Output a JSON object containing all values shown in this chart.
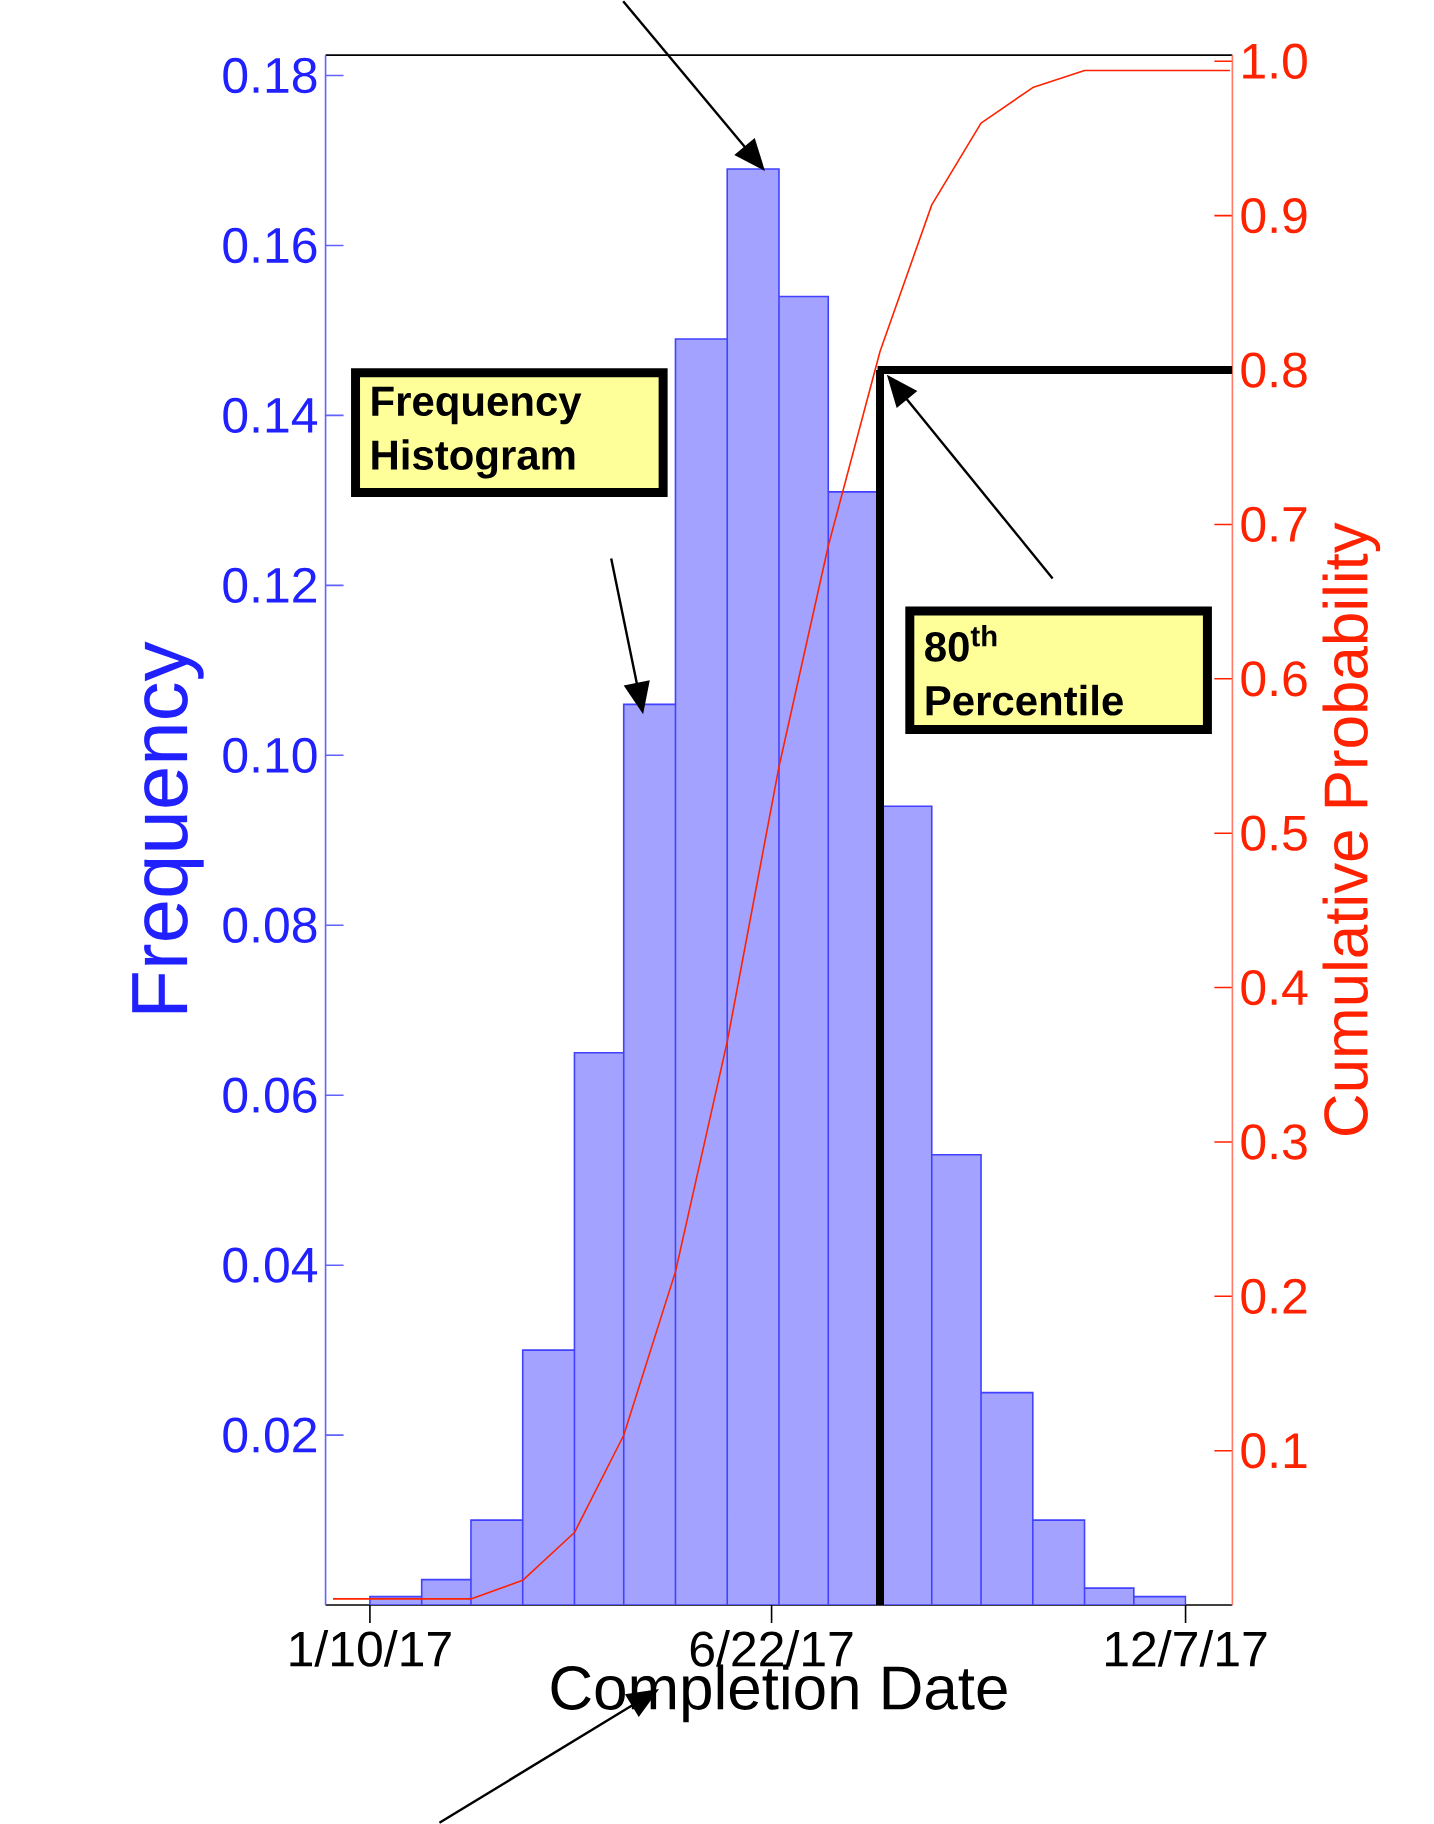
{
  "chart_data": {
    "type": "histogram",
    "xlabel": "Completion Date",
    "ylabel": "Frequency",
    "y2label": "Cumulative Probability",
    "xlim": [
      "2016-12-23",
      "2017-12-26"
    ],
    "ylim": [
      0,
      0.1824
    ],
    "y2lim": [
      0,
      1.004
    ],
    "xticks": [
      {
        "value": "2017-01-10",
        "label": "1/10/17"
      },
      {
        "value": "2017-06-22",
        "label": "6/22/17"
      },
      {
        "value": "2017-12-07",
        "label": "12/7/17"
      }
    ],
    "yticks": [
      {
        "value": 0.02,
        "label": "0.02"
      },
      {
        "value": 0.04,
        "label": "0.04"
      },
      {
        "value": 0.06,
        "label": "0.06"
      },
      {
        "value": 0.08,
        "label": "0.08"
      },
      {
        "value": 0.1,
        "label": "0.10"
      },
      {
        "value": 0.12,
        "label": "0.12"
      },
      {
        "value": 0.14,
        "label": "0.14"
      },
      {
        "value": 0.16,
        "label": "0.16"
      },
      {
        "value": 0.18,
        "label": "0.18"
      }
    ],
    "y2ticks": [
      0.1,
      0.2,
      0.3,
      0.4,
      0.5,
      0.6,
      0.7,
      0.8,
      0.9,
      {
        "value": 1.0,
        "label": "1.0"
      }
    ],
    "series": [
      {
        "color": "#a3a3ff",
        "bins": [
          "2017-01-10",
          "2017-01-31",
          "2017-02-20",
          "2017-03-13",
          "2017-04-03",
          "2017-04-23",
          "2017-05-14",
          "2017-06-04",
          "2017-06-25",
          "2017-07-15",
          "2017-08-05",
          "2017-08-26",
          "2017-09-15",
          "2017-10-06",
          "2017-10-27",
          "2017-11-16",
          "2017-12-07"
        ],
        "values": [
          0.001,
          0.003,
          0.01,
          0.03,
          0.065,
          0.106,
          0.149,
          0.169,
          0.154,
          0.131,
          0.094,
          0.053,
          0.025,
          0.01,
          0.002,
          0.001
        ]
      },
      {
        "type": "line",
        "axis": "y2",
        "color": "#ff2200",
        "x": [
          "2016-12-26",
          "2017-02-20",
          "2017-03-13",
          "2017-04-03",
          "2017-04-23",
          "2017-05-14",
          "2017-06-04",
          "2017-06-25",
          "2017-07-15",
          "2017-08-05",
          "2017-08-26",
          "2017-09-15",
          "2017-10-06",
          "2017-10-27",
          "2017-12-25"
        ],
        "values": [
          0.004,
          0.004,
          0.016,
          0.047,
          0.11,
          0.216,
          0.365,
          0.543,
          0.686,
          0.812,
          0.907,
          0.96,
          0.983,
          0.994,
          0.994
        ]
      }
    ],
    "ref_lines": [
      {
        "axis": "x",
        "value": "2017-08-05",
        "color": "#000000"
      },
      {
        "axis": "y2",
        "value": 0.8,
        "color": "#000000"
      }
    ],
    "annotations": [
      "Frequency Histogram",
      "80$^{th}$ Percentile"
    ]
  }
}
